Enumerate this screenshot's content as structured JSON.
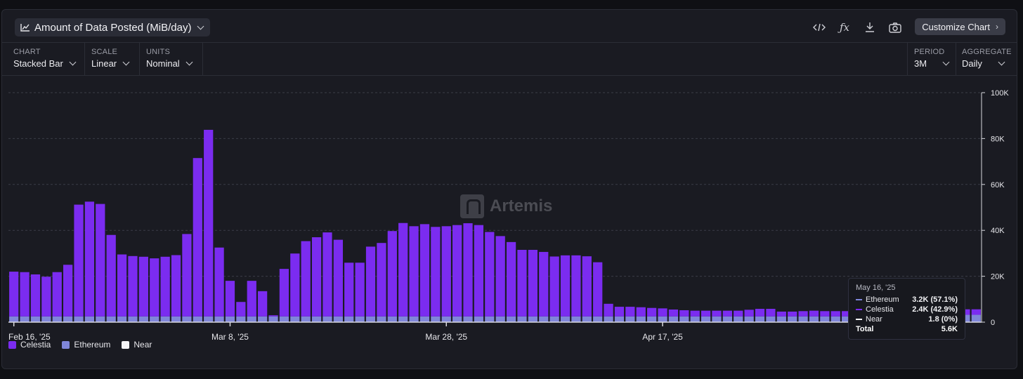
{
  "header": {
    "title": "Amount of Data Posted (MiB/day)",
    "customize_label": "Customize Chart"
  },
  "controls": {
    "chart": {
      "label": "CHART",
      "value": "Stacked Bar"
    },
    "scale": {
      "label": "SCALE",
      "value": "Linear"
    },
    "units": {
      "label": "UNITS",
      "value": "Nominal"
    },
    "period": {
      "label": "PERIOD",
      "value": "3M"
    },
    "aggregate": {
      "label": "AGGREGATE",
      "value": "Daily"
    }
  },
  "watermark": "Artemis",
  "colors": {
    "celestia": "#7b2cf0",
    "ethereum": "#7f86d9",
    "near": "#f4f4f6",
    "grid": "#3a3c47",
    "axis": "#d8d8de"
  },
  "tooltip": {
    "date": "May 16, '25",
    "rows": [
      {
        "name": "Ethereum",
        "value": "3.2K (57.1%)"
      },
      {
        "name": "Celestia",
        "value": "2.4K (42.9%)"
      },
      {
        "name": "Near",
        "value": "1.8 (0%)"
      }
    ],
    "total_label": "Total",
    "total_value": "5.6K"
  },
  "chart_data": {
    "type": "bar",
    "stacked": true,
    "x_tick_labels": [
      "Feb 16, '25",
      "Mar 8, '25",
      "Mar 28, '25",
      "Apr 17, '25"
    ],
    "y_tick_labels": [
      "0",
      "20K",
      "40K",
      "60K",
      "80K",
      "100K"
    ],
    "ylim": [
      0,
      100000
    ],
    "grid": true,
    "legend_position": "bottom-left",
    "x_start": "2025-02-16",
    "x_end": "2025-05-16",
    "series": [
      {
        "name": "Ethereum",
        "color": "#7f86d9",
        "values": [
          2500,
          2500,
          2500,
          2500,
          2500,
          2500,
          2500,
          2500,
          2500,
          2500,
          2500,
          2500,
          2500,
          2500,
          2500,
          2500,
          2500,
          2500,
          2500,
          2500,
          2500,
          2500,
          2500,
          2500,
          2500,
          2500,
          2500,
          2500,
          2500,
          2500,
          2500,
          2500,
          2500,
          2500,
          2500,
          2500,
          2500,
          2500,
          2500,
          2500,
          2500,
          2500,
          2500,
          2500,
          2500,
          2500,
          2500,
          2500,
          2500,
          2500,
          2500,
          2500,
          2500,
          2500,
          2500,
          2500,
          2500,
          2500,
          2500,
          2500,
          2500,
          2500,
          2500,
          2500,
          2500,
          2500,
          2500,
          2500,
          2500,
          2500,
          2500,
          2500,
          2500,
          2500,
          2500,
          2500,
          2500,
          2500,
          2500,
          2500,
          2500,
          2500,
          2500,
          2500,
          2500,
          2500,
          2500,
          2500,
          3200,
          3200
        ]
      },
      {
        "name": "Celestia",
        "color": "#7b2cf0",
        "values": [
          19500,
          19300,
          18300,
          17300,
          19300,
          22500,
          48700,
          50000,
          49000,
          35500,
          27000,
          26300,
          26000,
          25300,
          26000,
          26700,
          35900,
          69000,
          81300,
          30000,
          15500,
          6300,
          15500,
          11000,
          500,
          20700,
          27400,
          32800,
          34500,
          36600,
          33400,
          23400,
          23400,
          30400,
          32000,
          37200,
          40700,
          39300,
          40200,
          39000,
          39300,
          39800,
          40600,
          39800,
          36800,
          35000,
          32400,
          29000,
          29000,
          28100,
          26100,
          26600,
          26600,
          26200,
          23600,
          5500,
          4200,
          4200,
          4000,
          3700,
          3500,
          3000,
          2700,
          2500,
          2500,
          2500,
          2500,
          2500,
          2900,
          3300,
          3300,
          2100,
          2100,
          2300,
          2500,
          2300,
          2300,
          2300,
          2300,
          2100,
          2100,
          2100,
          2300,
          2000,
          2000,
          2000,
          2100,
          2100,
          2400,
          2400
        ]
      },
      {
        "name": "Near",
        "color": "#f4f4f6",
        "values": [
          2,
          2,
          2,
          2,
          2,
          2,
          2,
          2,
          2,
          2,
          2,
          2,
          2,
          2,
          2,
          2,
          2,
          2,
          2,
          2,
          2,
          2,
          2,
          2,
          2,
          2,
          2,
          2,
          2,
          2,
          2,
          2,
          2,
          2,
          2,
          2,
          2,
          2,
          2,
          2,
          2,
          2,
          2,
          2,
          2,
          2,
          2,
          2,
          2,
          2,
          2,
          2,
          2,
          2,
          2,
          2,
          2,
          2,
          2,
          2,
          2,
          2,
          2,
          2,
          2,
          2,
          2,
          2,
          2,
          2,
          2,
          2,
          2,
          2,
          2,
          2,
          2,
          2,
          2,
          2,
          2,
          2,
          2,
          2,
          2,
          2,
          2,
          2,
          1.8,
          1.8
        ]
      }
    ],
    "legend": [
      {
        "name": "Celestia",
        "color": "#7b2cf0"
      },
      {
        "name": "Ethereum",
        "color": "#7f86d9"
      },
      {
        "name": "Near",
        "color": "#f4f4f6"
      }
    ]
  }
}
